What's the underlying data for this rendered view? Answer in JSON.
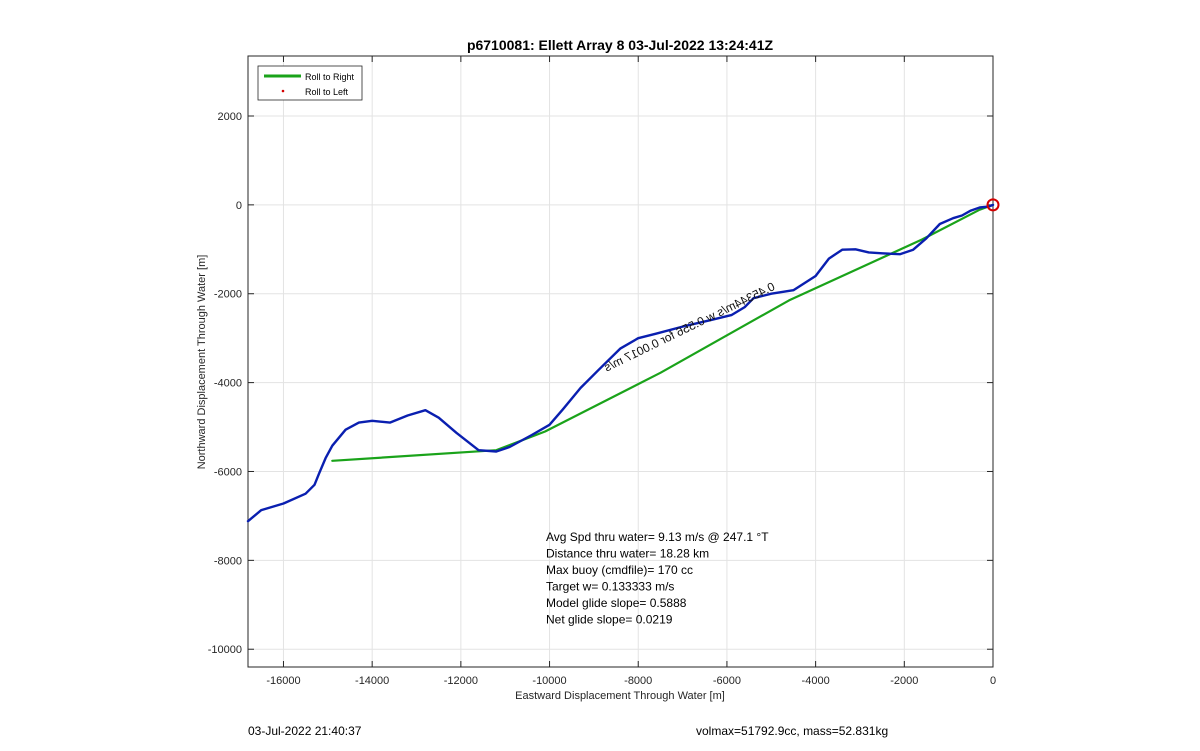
{
  "chart_data": {
    "type": "line",
    "title": "p6710081: Ellett Array 8 03-Jul-2022 13:24:41Z",
    "xlabel": "Eastward Displacement Through Water [m]",
    "ylabel": "Northward Displacement Through Water [m]",
    "xlim": [
      -16800,
      0
    ],
    "ylim": [
      -10400,
      3350
    ],
    "xticks": [
      -16000,
      -14000,
      -12000,
      -10000,
      -8000,
      -6000,
      -4000,
      -2000,
      0
    ],
    "yticks": [
      -10000,
      -8000,
      -6000,
      -4000,
      -2000,
      0,
      2000
    ],
    "grid": true,
    "legend_position": "top-left",
    "legend": [
      {
        "label": "Roll to Right",
        "color": "#1aa31a",
        "style": "line"
      },
      {
        "label": "Roll to Left",
        "color": "#d40000",
        "style": "dot"
      }
    ],
    "series": [
      {
        "name": "Roll to Right",
        "color": "#1aa31a",
        "x": [
          -14900,
          -11200,
          -10100,
          -7500,
          -4600,
          -1600,
          -300,
          0
        ],
        "y": [
          -5760,
          -5520,
          -5100,
          -3780,
          -2150,
          -780,
          -110,
          0
        ]
      },
      {
        "color": "#0a1fb0",
        "x": [
          -16800,
          -16500,
          -16000,
          -15500,
          -15300,
          -15200,
          -15050,
          -14900,
          -14600,
          -14300,
          -14000,
          -13600,
          -13200,
          -12800,
          -12500,
          -12100,
          -11600,
          -11200,
          -10900,
          -10400,
          -10000,
          -9700,
          -9300,
          -8900,
          -8400,
          -8000,
          -7600,
          -7000,
          -6400,
          -5900,
          -5600,
          -5400,
          -5000,
          -4500,
          -4000,
          -3700,
          -3400,
          -3100,
          -2800,
          -2500,
          -2100,
          -1800,
          -1500,
          -1200,
          -900,
          -700,
          -500,
          -300,
          -100,
          0
        ],
        "y": [
          -7120,
          -6870,
          -6720,
          -6500,
          -6300,
          -6050,
          -5700,
          -5420,
          -5060,
          -4900,
          -4860,
          -4900,
          -4740,
          -4620,
          -4790,
          -5130,
          -5520,
          -5550,
          -5450,
          -5180,
          -4950,
          -4600,
          -4120,
          -3720,
          -3230,
          -3000,
          -2900,
          -2740,
          -2600,
          -2480,
          -2300,
          -2100,
          -2000,
          -1920,
          -1600,
          -1210,
          -1010,
          -1000,
          -1070,
          -1090,
          -1110,
          -1010,
          -750,
          -430,
          -300,
          -240,
          -130,
          -60,
          -40,
          0
        ]
      }
    ],
    "start_marker": {
      "x": 0,
      "y": 0,
      "color": "#d40000"
    },
    "annotations": [
      "Avg Spd thru water=  9.13 m/s @ 247.1 °T",
      "Distance thru water= 18.28 km",
      "Max buoy (cmdfile)= 170 cc",
      "Target w= 0.133333 m/s",
      "Model glide slope= 0.5888",
      "Net glide slope= 0.0219"
    ],
    "trace_label": "0.45344m/s  w 0.556 for 0.0017 m/s"
  },
  "footer": {
    "left": "03-Jul-2022 21:40:37",
    "right": "volmax=51792.9cc, mass=52.831kg"
  }
}
